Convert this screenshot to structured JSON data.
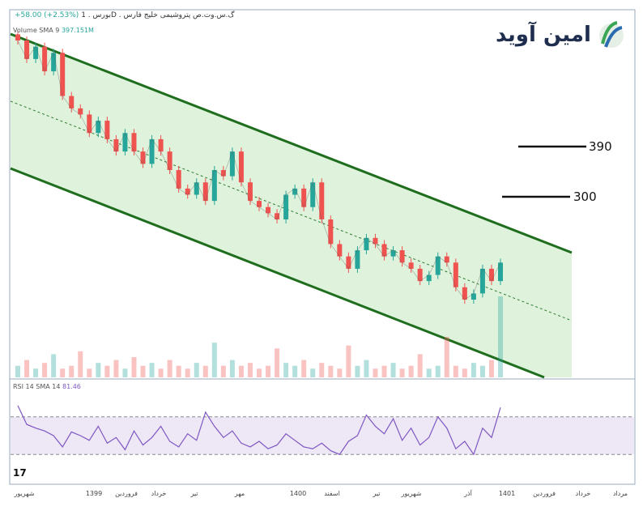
{
  "header": {
    "symbol_text": "بورس . 1D . گ.س.وت.ص پتروشیمی خلیج فارس",
    "change_text": "+58.00 (+2.53%)"
  },
  "volume_indicator": {
    "label": "Volume SMA 9",
    "value": "397.151M"
  },
  "rsi_indicator": {
    "label": "RSI 14 SMA 14",
    "value": "81.46"
  },
  "logo": {
    "text": "امین آوید",
    "colors": [
      "#1f2d4e",
      "#3aa655",
      "#2b6cb0"
    ]
  },
  "watermark": "17",
  "chart_data": {
    "type": "line",
    "x_tick_labels": [
      "شهریور",
      "1399",
      "فروردین",
      "خرداد",
      "تیر",
      "مهر",
      "1400",
      "اسفند",
      "تیر",
      "شهریور",
      "آذر",
      "1401",
      "فروردین",
      "خرداد",
      "مرداد"
    ],
    "price_series": [
      45,
      42,
      44,
      40,
      43,
      36,
      34,
      33,
      30,
      32,
      29,
      27,
      30,
      27,
      25,
      29,
      27,
      24,
      21,
      20,
      22,
      19,
      24,
      23,
      27,
      22,
      19,
      18,
      17,
      16,
      20,
      21,
      18,
      22,
      16,
      12,
      10,
      8,
      11,
      13,
      12,
      10,
      11,
      9,
      8,
      6,
      7,
      10,
      9,
      5,
      3,
      4,
      8,
      6,
      9
    ],
    "level_lines": [
      {
        "label": "390",
        "value": 390
      },
      {
        "label": "300",
        "value": 300
      }
    ],
    "rsi_series": [
      82,
      62,
      58,
      55,
      50,
      38,
      54,
      50,
      45,
      60,
      42,
      48,
      35,
      55,
      40,
      48,
      60,
      44,
      38,
      52,
      45,
      75,
      60,
      48,
      55,
      42,
      38,
      44,
      36,
      40,
      52,
      45,
      38,
      36,
      42,
      34,
      30,
      44,
      50,
      72,
      60,
      52,
      68,
      45,
      58,
      40,
      48,
      70,
      58,
      36,
      44,
      30,
      58,
      48,
      80
    ],
    "rsi_bands": [
      70,
      30
    ],
    "volume_series": [
      4,
      6,
      3,
      5,
      8,
      3,
      4,
      9,
      3,
      5,
      4,
      6,
      3,
      7,
      4,
      5,
      3,
      6,
      4,
      3,
      5,
      4,
      12,
      4,
      6,
      4,
      5,
      3,
      4,
      10,
      5,
      4,
      6,
      3,
      5,
      4,
      3,
      11,
      4,
      6,
      3,
      4,
      5,
      3,
      4,
      8,
      3,
      4,
      14,
      4,
      3,
      5,
      4,
      6,
      28
    ],
    "colors": {
      "channel_fill": "#dff2dc",
      "channel_line": "#1e6e1e",
      "rsi_line": "#7e57c2",
      "rsi_band_fill": "#ede7f6",
      "up_candle": "#26a69a",
      "down_candle": "#ef5350"
    }
  }
}
